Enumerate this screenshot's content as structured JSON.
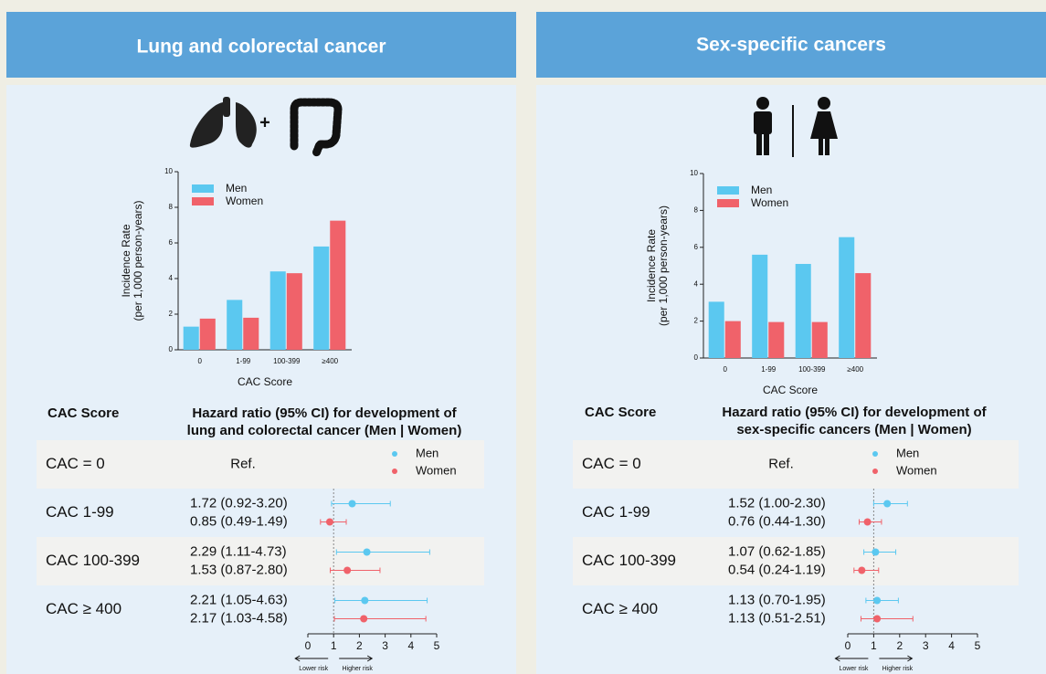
{
  "panels": [
    {
      "title": "Lung and colorectal cancer"
    },
    {
      "title": "Sex-specific cancers"
    }
  ],
  "chart_data": [
    {
      "type": "bar",
      "y_label": [
        "Incidence Rate",
        "(per 1,000 person-years)"
      ],
      "x_label": "CAC Score",
      "categories": [
        "0",
        "1-99",
        "100-399",
        "≥400"
      ],
      "series": [
        {
          "name": "Men",
          "color": "#5bc8f0",
          "values": [
            1.3,
            2.8,
            4.4,
            5.8
          ]
        },
        {
          "name": "Women",
          "color": "#f0626a",
          "values": [
            1.75,
            1.8,
            4.3,
            7.25
          ]
        }
      ],
      "ylim": [
        0,
        10
      ],
      "yticks": [
        0,
        2,
        4,
        6,
        8,
        10
      ]
    },
    {
      "type": "forest",
      "column_label": "CAC Score",
      "title": [
        "Hazard ratio (95% CI) for development of",
        "lung and colorectal cancer (Men | Women)"
      ],
      "rows": [
        "CAC = 0",
        "CAC 1-99",
        "CAC 100-399",
        "CAC ≥ 400"
      ],
      "reference_label": "Ref.",
      "series": [
        {
          "name": "Men",
          "color": "#5bc8f0",
          "values": [
            null,
            1.72,
            2.29,
            2.21
          ],
          "lower": [
            null,
            0.92,
            1.11,
            1.05
          ],
          "upper": [
            null,
            3.2,
            4.73,
            4.63
          ],
          "value_labels": [
            null,
            "1.72 (0.92-3.20)",
            "2.29 (1.11-4.73)",
            "2.21 (1.05-4.63)"
          ]
        },
        {
          "name": "Women",
          "color": "#f0626a",
          "values": [
            null,
            0.85,
            1.53,
            2.17
          ],
          "lower": [
            null,
            0.49,
            0.87,
            1.03
          ],
          "upper": [
            null,
            1.49,
            2.8,
            4.58
          ],
          "value_labels": [
            null,
            "0.85 (0.49-1.49)",
            "1.53 (0.87-2.80)",
            "2.17 (1.03-4.58)"
          ]
        }
      ],
      "xlim": [
        0,
        5
      ],
      "xticks": [
        0,
        1,
        2,
        3,
        4,
        5
      ],
      "reference_line": 1,
      "direction_labels": [
        "Lower risk",
        "Higher risk"
      ]
    },
    {
      "type": "bar",
      "y_label": [
        "Incidence Rate",
        "(per 1,000 person-years)"
      ],
      "x_label": "CAC Score",
      "categories": [
        "0",
        "1-99",
        "100-399",
        "≥400"
      ],
      "series": [
        {
          "name": "Men",
          "color": "#5bc8f0",
          "values": [
            3.05,
            5.6,
            5.1,
            6.55
          ]
        },
        {
          "name": "Women",
          "color": "#f0626a",
          "values": [
            2.0,
            1.95,
            1.95,
            4.6
          ]
        }
      ],
      "ylim": [
        0,
        10
      ],
      "yticks": [
        0,
        2,
        4,
        6,
        8,
        10
      ]
    },
    {
      "type": "forest",
      "column_label": "CAC Score",
      "title": [
        "Hazard ratio (95% CI) for development of",
        "sex-specific cancers (Men | Women)"
      ],
      "rows": [
        "CAC = 0",
        "CAC 1-99",
        "CAC 100-399",
        "CAC ≥ 400"
      ],
      "reference_label": "Ref.",
      "series": [
        {
          "name": "Men",
          "color": "#5bc8f0",
          "values": [
            null,
            1.52,
            1.07,
            1.13
          ],
          "lower": [
            null,
            1.0,
            0.62,
            0.7
          ],
          "upper": [
            null,
            2.3,
            1.85,
            1.95
          ],
          "value_labels": [
            null,
            "1.52 (1.00-2.30)",
            "1.07 (0.62-1.85)",
            "1.13 (0.70-1.95)"
          ]
        },
        {
          "name": "Women",
          "color": "#f0626a",
          "values": [
            null,
            0.76,
            0.54,
            1.13
          ],
          "lower": [
            null,
            0.44,
            0.24,
            0.51
          ],
          "upper": [
            null,
            1.3,
            1.19,
            2.51
          ],
          "value_labels": [
            null,
            "0.76 (0.44-1.30)",
            "0.54 (0.24-1.19)",
            "1.13 (0.51-2.51)"
          ]
        }
      ],
      "xlim": [
        0,
        5
      ],
      "xticks": [
        0,
        1,
        2,
        3,
        4,
        5
      ],
      "reference_line": 1,
      "direction_labels": [
        "Lower risk",
        "Higher risk"
      ]
    }
  ]
}
